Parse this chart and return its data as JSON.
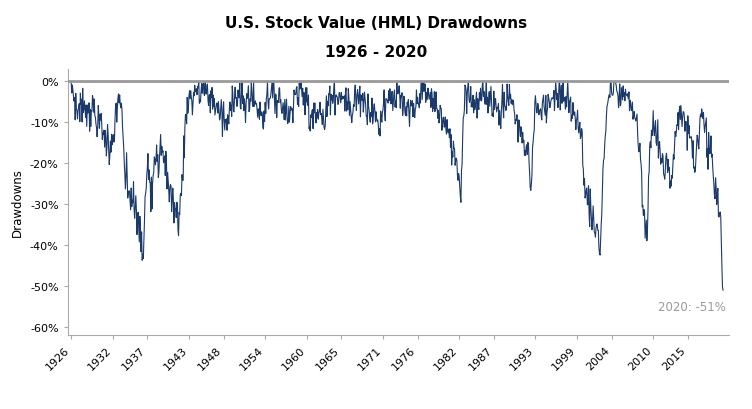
{
  "title_line1": "U.S. Stock Value (HML) Drawdowns",
  "title_line2": "1926 - 2020",
  "ylabel": "Drawdowns",
  "annotation": "2020: -51%",
  "line_color": "#1a3a6b",
  "zero_line_color": "#999999",
  "annotation_color": "#999999",
  "background_color": "#ffffff",
  "ylim": [
    -62,
    3
  ],
  "yticks": [
    0,
    -10,
    -20,
    -30,
    -40,
    -50,
    -60
  ],
  "ytick_labels": [
    "0%",
    "-10%",
    "-20%",
    "-30%",
    "-40%",
    "-50%",
    "-60%"
  ],
  "xtick_years": [
    1926,
    1932,
    1937,
    1943,
    1948,
    1954,
    1960,
    1965,
    1971,
    1976,
    1982,
    1987,
    1993,
    1999,
    2004,
    2010,
    2015
  ],
  "start_year": 1926,
  "end_year": 2020
}
